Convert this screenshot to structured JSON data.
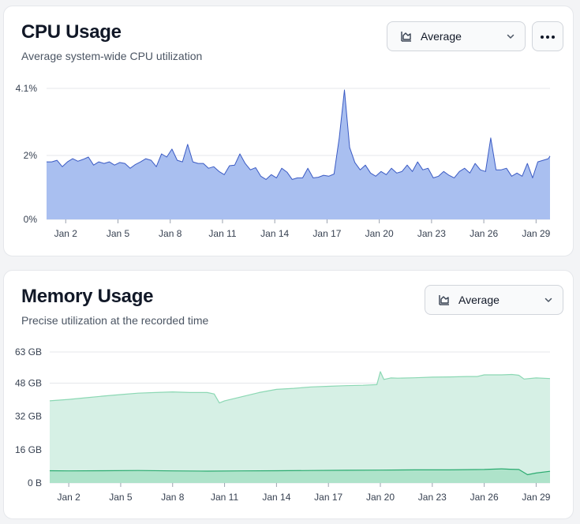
{
  "cpu": {
    "title": "CPU Usage",
    "subtitle": "Average system-wide CPU utilization",
    "select_label": "Average",
    "more_label": "•••"
  },
  "memory": {
    "title": "Memory Usage",
    "subtitle": "Precise utilization at the recorded time",
    "select_label": "Average"
  },
  "colors": {
    "cpu_fill": "#a9bff0",
    "cpu_line": "#3b5bc4",
    "mem_fill_total": "#d6f0e5",
    "mem_line_total": "#8cd8b4",
    "mem_fill_used": "#aee3ca",
    "mem_line_used": "#2bab70",
    "grid": "#e5e7eb"
  },
  "chart_data": [
    {
      "type": "area",
      "title": "CPU Usage",
      "unit": "%",
      "x_ticks": [
        "Jan 2",
        "Jan 5",
        "Jan 8",
        "Jan 11",
        "Jan 14",
        "Jan 17",
        "Jan 20",
        "Jan 23",
        "Jan 26",
        "Jan 29"
      ],
      "x_tick_positions": [
        2,
        5,
        8,
        11,
        14,
        17,
        20,
        23,
        26,
        29
      ],
      "xlim": [
        0.9,
        29.8
      ],
      "y_ticks": [
        "0%",
        "2%",
        "4.1%"
      ],
      "y_tick_values": [
        0,
        2,
        4.1
      ],
      "ylim": [
        0,
        4.1
      ],
      "grid": true,
      "series": [
        {
          "x": [
            0.9,
            1.2,
            1.5,
            1.8,
            2.1,
            2.4,
            2.7,
            3.0,
            3.3,
            3.6,
            3.9,
            4.2,
            4.5,
            4.8,
            5.1,
            5.4,
            5.7,
            6.0,
            6.3,
            6.6,
            6.9,
            7.2,
            7.5,
            7.8,
            8.1,
            8.4,
            8.7,
            9.0,
            9.3,
            9.6,
            9.9,
            10.2,
            10.5,
            10.8,
            11.1,
            11.4,
            11.7,
            12.0,
            12.3,
            12.6,
            12.9,
            13.2,
            13.5,
            13.8,
            14.1,
            14.4,
            14.7,
            15.0,
            15.3,
            15.6,
            15.9,
            16.2,
            16.5,
            16.8,
            17.1,
            17.4,
            17.7,
            18.0,
            18.3,
            18.6,
            18.9,
            19.2,
            19.5,
            19.8,
            20.1,
            20.4,
            20.7,
            21.0,
            21.3,
            21.6,
            21.9,
            22.2,
            22.5,
            22.8,
            23.1,
            23.4,
            23.7,
            24.0,
            24.3,
            24.6,
            24.9,
            25.2,
            25.5,
            25.8,
            26.1,
            26.4,
            26.7,
            27.0,
            27.3,
            27.6,
            27.9,
            28.2,
            28.5,
            28.8,
            29.1,
            29.4,
            29.7,
            29.8
          ],
          "y": [
            1.8,
            1.8,
            1.85,
            1.65,
            1.8,
            1.9,
            1.82,
            1.88,
            1.95,
            1.7,
            1.8,
            1.75,
            1.8,
            1.7,
            1.78,
            1.75,
            1.6,
            1.72,
            1.8,
            1.9,
            1.85,
            1.65,
            2.05,
            1.95,
            2.2,
            1.85,
            1.8,
            2.35,
            1.8,
            1.75,
            1.75,
            1.6,
            1.65,
            1.5,
            1.4,
            1.68,
            1.7,
            2.05,
            1.75,
            1.55,
            1.62,
            1.35,
            1.25,
            1.4,
            1.3,
            1.6,
            1.48,
            1.25,
            1.3,
            1.3,
            1.6,
            1.3,
            1.32,
            1.38,
            1.35,
            1.42,
            2.55,
            4.05,
            2.25,
            1.78,
            1.55,
            1.7,
            1.45,
            1.35,
            1.5,
            1.4,
            1.6,
            1.45,
            1.5,
            1.7,
            1.5,
            1.8,
            1.55,
            1.6,
            1.3,
            1.35,
            1.5,
            1.38,
            1.3,
            1.5,
            1.6,
            1.45,
            1.75,
            1.55,
            1.5,
            2.55,
            1.55,
            1.55,
            1.6,
            1.35,
            1.45,
            1.35,
            1.75,
            1.3,
            1.8,
            1.85,
            1.9,
            1.98
          ]
        }
      ]
    },
    {
      "type": "area",
      "title": "Memory Usage",
      "unit": "GB",
      "x_ticks": [
        "Jan 2",
        "Jan 5",
        "Jan 8",
        "Jan 11",
        "Jan 14",
        "Jan 17",
        "Jan 20",
        "Jan 23",
        "Jan 26",
        "Jan 29"
      ],
      "x_tick_positions": [
        2,
        5,
        8,
        11,
        14,
        17,
        20,
        23,
        26,
        29
      ],
      "xlim": [
        0.9,
        29.8
      ],
      "y_ticks": [
        "0 B",
        "16 GB",
        "32 GB",
        "48 GB",
        "63 GB"
      ],
      "y_tick_values": [
        0,
        16,
        32,
        48,
        63
      ],
      "ylim": [
        0,
        63
      ],
      "grid": true,
      "series": [
        {
          "x": [
            0.9,
            2.0,
            3.0,
            4.0,
            5.0,
            6.0,
            7.0,
            8.0,
            9.0,
            10.0,
            10.4,
            10.7,
            11.0,
            12.0,
            13.0,
            14.0,
            15.0,
            16.0,
            17.0,
            18.0,
            19.0,
            19.8,
            20.0,
            20.2,
            20.6,
            21.0,
            22.0,
            23.0,
            24.0,
            25.0,
            25.6,
            26.0,
            27.0,
            27.6,
            28.0,
            28.3,
            29.0,
            29.8
          ],
          "y": [
            39.5,
            40.2,
            41.0,
            41.8,
            42.5,
            43.2,
            43.5,
            43.8,
            43.5,
            43.5,
            42.8,
            38.5,
            39.5,
            41.5,
            43.5,
            45.0,
            45.5,
            46.2,
            46.5,
            46.8,
            47.0,
            47.3,
            53.5,
            49.8,
            50.5,
            50.4,
            50.6,
            50.9,
            51.0,
            51.2,
            51.2,
            52.0,
            52.0,
            52.2,
            51.8,
            50.0,
            50.5,
            50.2
          ]
        },
        {
          "x": [
            0.9,
            2.0,
            4.0,
            6.0,
            8.0,
            10.0,
            12.0,
            14.0,
            16.0,
            18.0,
            20.0,
            22.0,
            24.0,
            26.0,
            27.0,
            27.5,
            28.0,
            28.5,
            29.0,
            29.8
          ],
          "y": [
            5.9,
            5.8,
            5.9,
            6.0,
            5.8,
            5.7,
            5.8,
            5.9,
            6.0,
            6.1,
            6.2,
            6.3,
            6.3,
            6.5,
            6.8,
            6.6,
            6.5,
            4.0,
            4.8,
            5.6
          ]
        }
      ]
    }
  ]
}
